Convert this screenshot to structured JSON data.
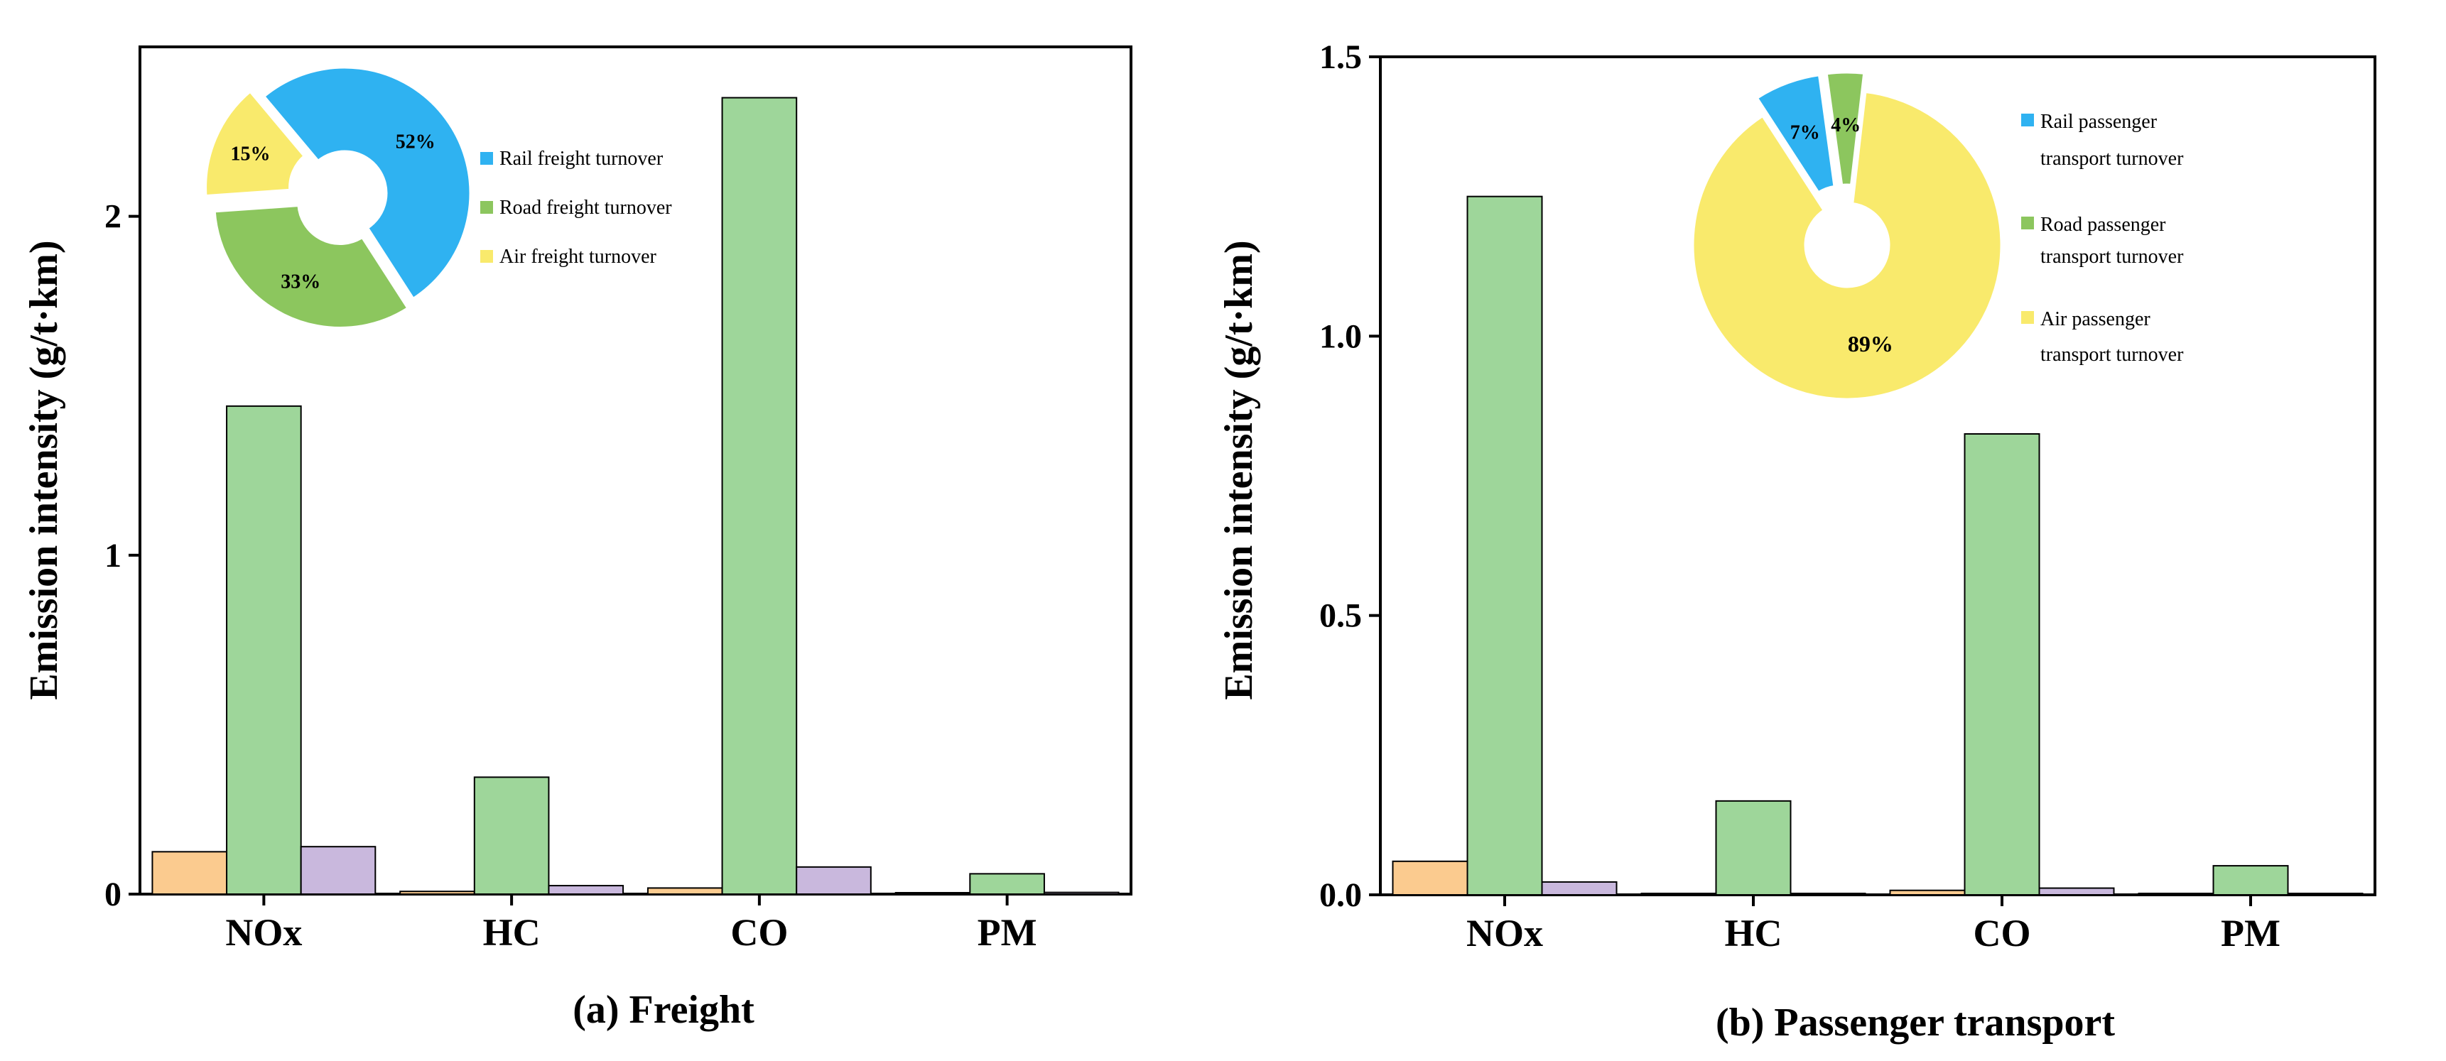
{
  "colors": {
    "bar_series": [
      "#FBCB8F",
      "#9ED69A",
      "#C9B8DD"
    ],
    "freight_pie": [
      "#2FB2F1",
      "#8CC65E",
      "#F9EA6C"
    ],
    "passenger_pie": [
      "#2FB2F1",
      "#8CC65E",
      "#F9EA6C"
    ],
    "axis": "#000000"
  },
  "chart_data": [
    {
      "type": "bar",
      "panel": "a",
      "caption": "(a) Freight",
      "xlabel": "",
      "ylabel": "Emission intensity (g/t·km)",
      "ylim": [
        0,
        2.5
      ],
      "yticks": [
        0,
        1,
        2
      ],
      "ytick_labels": [
        "0",
        "1",
        "2"
      ],
      "categories": [
        "NOx",
        "HC",
        "CO",
        "PM"
      ],
      "series": [
        {
          "name": "Rail",
          "values": [
            0.125,
            0.008,
            0.018,
            0.003
          ]
        },
        {
          "name": "Road",
          "values": [
            1.44,
            0.345,
            2.35,
            0.06
          ]
        },
        {
          "name": "Air",
          "values": [
            0.14,
            0.025,
            0.08,
            0.005
          ]
        }
      ],
      "inset_pie": {
        "type": "pie",
        "labels": [
          "Rail freight turnover",
          "Road freight turnover",
          "Air freight turnover"
        ],
        "values": [
          52,
          33,
          15
        ],
        "value_labels": [
          "52%",
          "33%",
          "15%"
        ]
      }
    },
    {
      "type": "bar",
      "panel": "b",
      "caption": "(b) Passenger transport",
      "xlabel": "",
      "ylabel": "Emission intensity (g/t·km)",
      "ylim": [
        0,
        1.5
      ],
      "yticks": [
        0,
        0.5,
        1.0,
        1.5
      ],
      "ytick_labels": [
        "0.0",
        "0.5",
        "1.0",
        "1.5"
      ],
      "categories": [
        "NOx",
        "HC",
        "CO",
        "PM"
      ],
      "series": [
        {
          "name": "Rail",
          "values": [
            0.06,
            0.002,
            0.008,
            0.002
          ]
        },
        {
          "name": "Road",
          "values": [
            1.25,
            0.168,
            0.825,
            0.052
          ]
        },
        {
          "name": "Air",
          "values": [
            0.023,
            0.002,
            0.012,
            0.001
          ]
        }
      ],
      "inset_pie": {
        "type": "pie",
        "labels": [
          "Rail passenger transport turnover",
          "Road passenger transport turnover",
          "Air passenger transport turnover"
        ],
        "legend_lines": [
          [
            "Rail passenger",
            "transport turnover"
          ],
          [
            "Road passenger",
            "transport turnover"
          ],
          [
            "Air passenger",
            "transport turnover"
          ]
        ],
        "values": [
          7,
          4,
          89
        ],
        "value_labels": [
          "7%",
          "4%",
          "89%"
        ]
      }
    }
  ]
}
